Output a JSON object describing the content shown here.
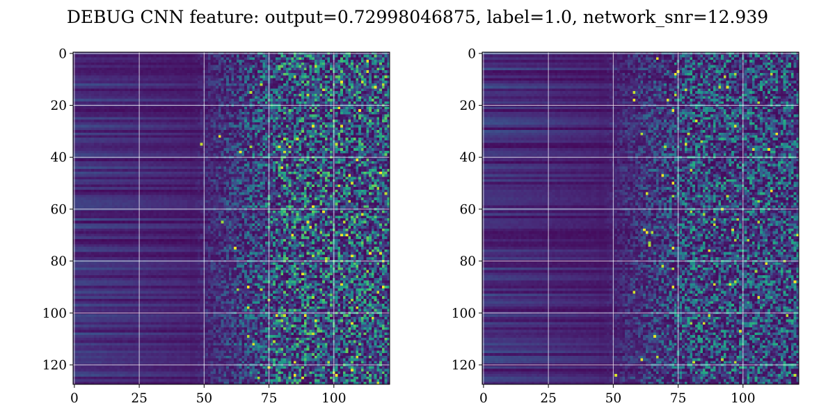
{
  "chart_data": [
    {
      "type": "heatmap",
      "title": "DEBUG CNN feature: output=0.72998046875, label=1.0, network_snr=12.939",
      "panel": "left",
      "rows": 128,
      "cols": 122,
      "colormap": "viridis",
      "grid": true,
      "x_ticks": [
        "0",
        "25",
        "50",
        "75",
        "100"
      ],
      "y_ticks": [
        "0",
        "20",
        "40",
        "60",
        "80",
        "100",
        "120"
      ],
      "xlim": [
        -0.5,
        121.5
      ],
      "ylim": [
        127.5,
        -0.5
      ]
    },
    {
      "type": "heatmap",
      "panel": "right",
      "rows": 128,
      "cols": 122,
      "colormap": "viridis",
      "grid": true,
      "x_ticks": [
        "0",
        "25",
        "50",
        "75",
        "100"
      ],
      "y_ticks": [
        "0",
        "20",
        "40",
        "60",
        "80",
        "100",
        "120"
      ],
      "xlim": [
        -0.5,
        121.5
      ],
      "ylim": [
        127.5,
        -0.5
      ]
    }
  ],
  "colors": {
    "grid": "#ffffff",
    "frame": "#000000"
  }
}
